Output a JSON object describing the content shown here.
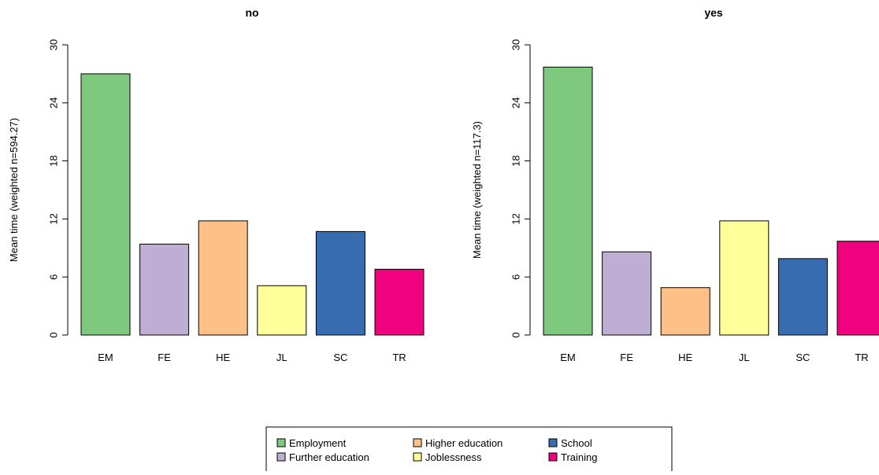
{
  "chart_data": [
    {
      "type": "bar",
      "title": "no",
      "xlabel": "",
      "ylabel": "Mean time (weighted n=594.27)",
      "ylim": [
        0,
        30
      ],
      "yticks": [
        0,
        6,
        12,
        18,
        24,
        30
      ],
      "categories": [
        "EM",
        "FE",
        "HE",
        "JL",
        "SC",
        "TR"
      ],
      "values": [
        27.0,
        9.4,
        11.8,
        5.1,
        10.7,
        6.8
      ],
      "colors": [
        "#7fc97f",
        "#beaed4",
        "#fdc086",
        "#ffff99",
        "#386cb0",
        "#f0027f"
      ]
    },
    {
      "type": "bar",
      "title": "yes",
      "xlabel": "",
      "ylabel": "Mean time (weighted n=117.3)",
      "ylim": [
        0,
        30
      ],
      "yticks": [
        0,
        6,
        12,
        18,
        24,
        30
      ],
      "categories": [
        "EM",
        "FE",
        "HE",
        "JL",
        "SC",
        "TR"
      ],
      "values": [
        27.7,
        8.6,
        4.9,
        11.8,
        7.9,
        9.7
      ],
      "colors": [
        "#7fc97f",
        "#beaed4",
        "#fdc086",
        "#ffff99",
        "#386cb0",
        "#f0027f"
      ]
    }
  ],
  "legend": {
    "placement": "bottom-center",
    "entries": [
      {
        "label": "Employment",
        "color": "#7fc97f"
      },
      {
        "label": "Further education",
        "color": "#beaed4"
      },
      {
        "label": "Higher education",
        "color": "#fdc086"
      },
      {
        "label": "Joblessness",
        "color": "#ffff99"
      },
      {
        "label": "School",
        "color": "#386cb0"
      },
      {
        "label": "Training",
        "color": "#f0027f"
      }
    ]
  }
}
